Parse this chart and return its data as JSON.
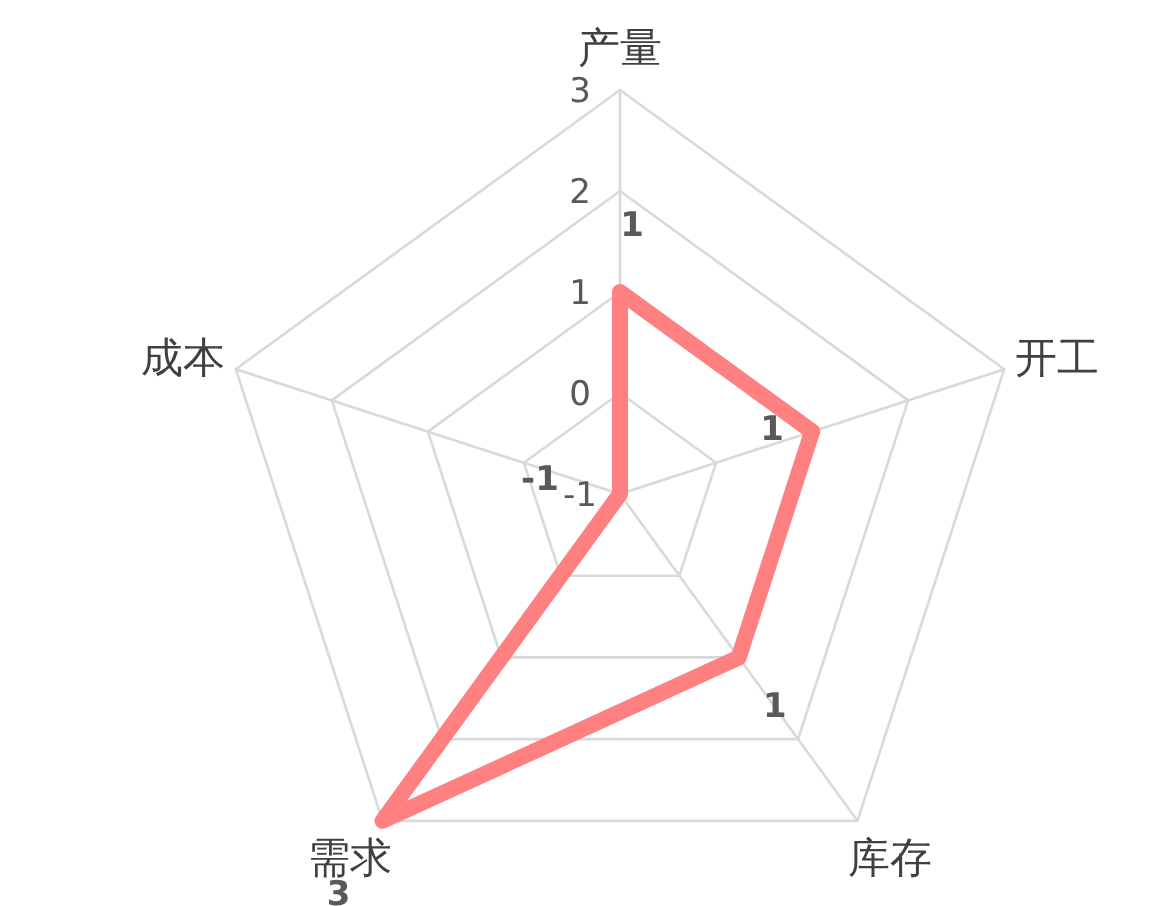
{
  "chart_data": {
    "type": "radar",
    "categories": [
      "产量",
      "开工",
      "库存",
      "需求",
      "成本"
    ],
    "series": [
      {
        "color": "#ff8080",
        "values": [
          1,
          1,
          1,
          3,
          -1
        ]
      }
    ],
    "ylim": [
      -1,
      3
    ],
    "yticks": [
      -1,
      0,
      1,
      2,
      3
    ],
    "grid": true,
    "data_labels": true
  }
}
